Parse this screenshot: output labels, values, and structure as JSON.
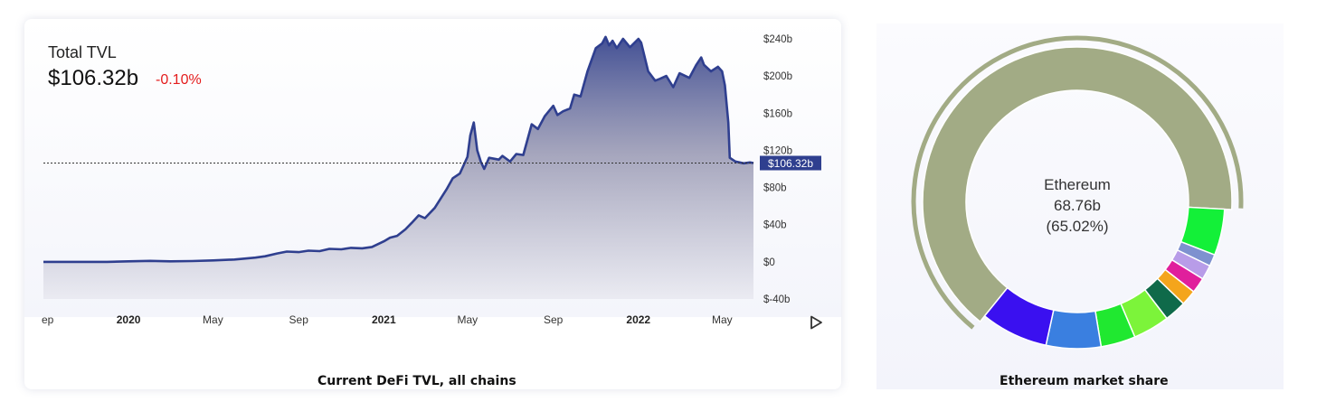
{
  "left_panel": {
    "label": "Total TVL",
    "value": "$106.32b",
    "change": "-0.10%",
    "caption": "Current DeFi TVL, all chains",
    "current_value_label": "$106.32b"
  },
  "right_panel": {
    "center_name": "Ethereum",
    "center_value": "68.76b",
    "center_percent": "(65.02%)",
    "caption": "Ethereum market share"
  },
  "colors": {
    "line": "#2f3f8f",
    "area_top": "#39478f",
    "change_negative": "#e41d1d",
    "ethereum": "#a2ab85"
  },
  "icons": [
    "play-icon"
  ],
  "chart_data": [
    {
      "type": "area",
      "title": "Current DeFi TVL, all chains",
      "ylim": [
        -40,
        240
      ],
      "y_ticks": [
        "$-40b",
        "$0",
        "$40b",
        "$80b",
        "$120b",
        "$160b",
        "$200b",
        "$240b"
      ],
      "x_ticks": [
        "ep",
        "2020",
        "May",
        "Sep",
        "2021",
        "May",
        "Sep",
        "2022",
        "May"
      ],
      "bold_ticks": [
        "2020",
        "2021",
        "2022"
      ],
      "x_range": [
        "2019-09-01",
        "2022-06-15"
      ],
      "grid": false,
      "reference_line": 106.32,
      "series": [
        {
          "x": [
            "2019-09-01",
            "2019-10-01",
            "2019-11-01",
            "2019-12-01",
            "2020-01-01",
            "2020-02-01",
            "2020-03-01",
            "2020-04-01",
            "2020-05-01",
            "2020-06-01",
            "2020-07-01",
            "2020-07-15",
            "2020-08-01",
            "2020-08-15",
            "2020-09-01",
            "2020-09-15",
            "2020-10-01",
            "2020-10-15",
            "2020-11-01",
            "2020-11-15",
            "2020-12-01",
            "2020-12-15",
            "2021-01-01",
            "2021-01-10",
            "2021-01-20",
            "2021-02-01",
            "2021-02-10",
            "2021-02-20",
            "2021-03-01",
            "2021-03-15",
            "2021-04-01",
            "2021-04-10",
            "2021-04-20",
            "2021-05-01",
            "2021-05-05",
            "2021-05-10",
            "2021-05-15",
            "2021-05-20",
            "2021-05-25",
            "2021-06-01",
            "2021-06-15",
            "2021-06-20",
            "2021-07-01",
            "2021-07-10",
            "2021-07-20",
            "2021-08-01",
            "2021-08-10",
            "2021-08-20",
            "2021-09-01",
            "2021-09-07",
            "2021-09-15",
            "2021-09-25",
            "2021-10-01",
            "2021-10-10",
            "2021-10-20",
            "2021-11-01",
            "2021-11-10",
            "2021-11-15",
            "2021-11-20",
            "2021-11-25",
            "2021-12-01",
            "2021-12-10",
            "2021-12-20",
            "2022-01-01",
            "2022-01-05",
            "2022-01-15",
            "2022-01-25",
            "2022-02-01",
            "2022-02-10",
            "2022-02-20",
            "2022-03-01",
            "2022-03-15",
            "2022-03-25",
            "2022-04-01",
            "2022-04-05",
            "2022-04-15",
            "2022-04-25",
            "2022-05-01",
            "2022-05-05",
            "2022-05-10",
            "2022-05-12",
            "2022-05-20",
            "2022-06-01",
            "2022-06-10",
            "2022-06-15"
          ],
          "y": [
            0,
            0,
            0,
            0,
            0.5,
            1,
            0.5,
            0.8,
            1.5,
            2.5,
            4.5,
            6,
            9,
            11,
            10.5,
            12,
            11.5,
            14,
            13.5,
            15,
            14.5,
            16,
            22,
            26,
            28,
            35,
            42,
            50,
            47,
            58,
            78,
            90,
            95,
            113,
            136,
            150,
            120,
            108,
            100,
            112,
            110,
            114,
            108,
            116,
            115,
            148,
            143,
            157,
            168,
            158,
            162,
            165,
            180,
            178,
            205,
            230,
            235,
            242,
            233,
            238,
            230,
            240,
            231,
            240,
            236,
            205,
            195,
            197,
            200,
            188,
            203,
            198,
            212,
            220,
            212,
            205,
            210,
            205,
            190,
            150,
            112,
            108,
            106,
            107,
            106.32
          ]
        }
      ]
    },
    {
      "type": "pie",
      "title": "Ethereum market share",
      "highlight": "Ethereum",
      "categories": [
        "Ethereum",
        "",
        "",
        "",
        "",
        "",
        "",
        "",
        "",
        "",
        ""
      ],
      "values": [
        65.02,
        7.4,
        6.0,
        3.8,
        4.0,
        2.4,
        1.7,
        1.7,
        1.6,
        1.3,
        5.08
      ],
      "colors": [
        "#a2ab85",
        "#3a10f0",
        "#3a7fe0",
        "#20e830",
        "#7cf43a",
        "#0f6a4a",
        "#f4a51c",
        "#e01f9c",
        "#b89ce8",
        "#7e91cf",
        "#13f038"
      ]
    }
  ]
}
